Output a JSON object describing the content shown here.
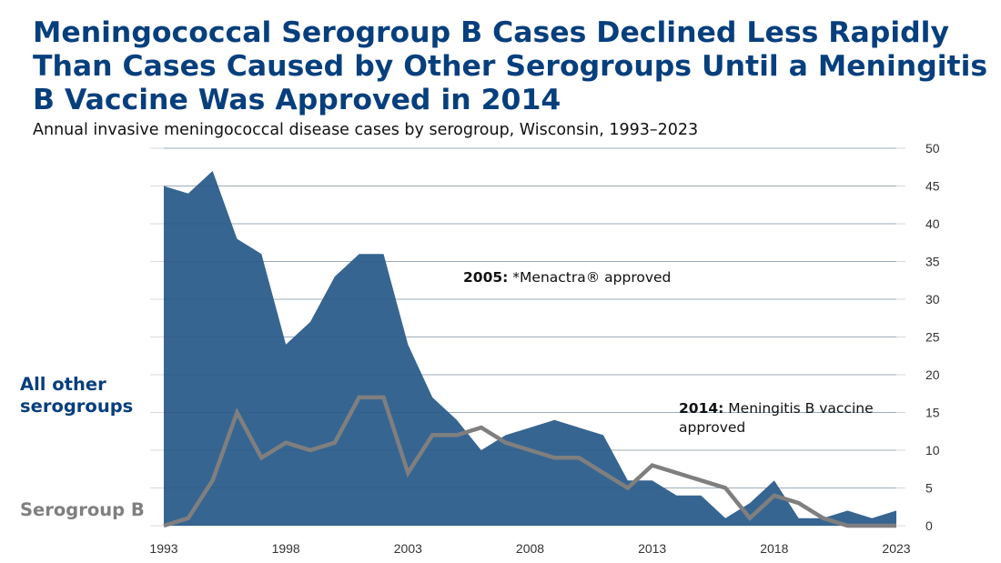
{
  "chart_data": {
    "type": "area",
    "title": "Meningococcal Serogroup B Cases Declined Less Rapidly Than Cases Caused by Other Serogroups Until a Meningitis B Vaccine Was Approved in 2014",
    "subtitle": "Annual invasive meningococcal disease cases by serogroup, Wisconsin, 1993–2023",
    "xlabel": "",
    "ylabel": "",
    "x": [
      1993,
      1994,
      1995,
      1996,
      1997,
      1998,
      1999,
      2000,
      2001,
      2002,
      2003,
      2004,
      2005,
      2006,
      2007,
      2008,
      2009,
      2010,
      2011,
      2012,
      2013,
      2014,
      2015,
      2016,
      2017,
      2018,
      2019,
      2020,
      2021,
      2022,
      2023
    ],
    "x_tick_labels": [
      "1993",
      "1998",
      "2003",
      "2008",
      "2013",
      "2018",
      "2023"
    ],
    "y_tick_labels": [
      "0",
      "5",
      "10",
      "15",
      "20",
      "25",
      "30",
      "35",
      "40",
      "45",
      "50"
    ],
    "ylim": [
      0,
      50
    ],
    "y_axis_side": "right",
    "grid": true,
    "series": [
      {
        "name": "All other serogroups",
        "type": "area",
        "color": "#376591",
        "values": [
          45,
          44,
          47,
          38,
          36,
          24,
          27,
          33,
          36,
          36,
          24,
          17,
          14,
          10,
          12,
          13,
          14,
          13,
          12,
          6,
          6,
          4,
          4,
          1,
          3,
          6,
          1,
          1,
          2,
          1,
          2
        ]
      },
      {
        "name": "Serogroup B",
        "type": "line",
        "color": "#7f7f7f",
        "values": [
          0,
          1,
          6,
          15,
          9,
          11,
          10,
          11,
          17,
          17,
          7,
          12,
          12,
          13,
          11,
          10,
          9,
          9,
          7,
          5,
          8,
          7,
          6,
          5,
          1,
          4,
          3,
          1,
          0,
          0,
          0
        ]
      }
    ],
    "legend": [
      {
        "label_line1": "All other",
        "label_line2": "serogroups",
        "color": "#073f7d",
        "placement": "left-middle"
      },
      {
        "label": "Serogroup B",
        "color": "#7f7f7f",
        "placement": "left-bottom"
      }
    ],
    "annotations": [
      {
        "year_label": "2005:",
        "text": "*Menactra® approved"
      },
      {
        "year_label": "2014:",
        "text_line1": "Meningitis B vaccine",
        "text_line2": "approved"
      }
    ]
  },
  "colors": {
    "title": "#073f7d",
    "gridline": "#d9d9d9"
  }
}
